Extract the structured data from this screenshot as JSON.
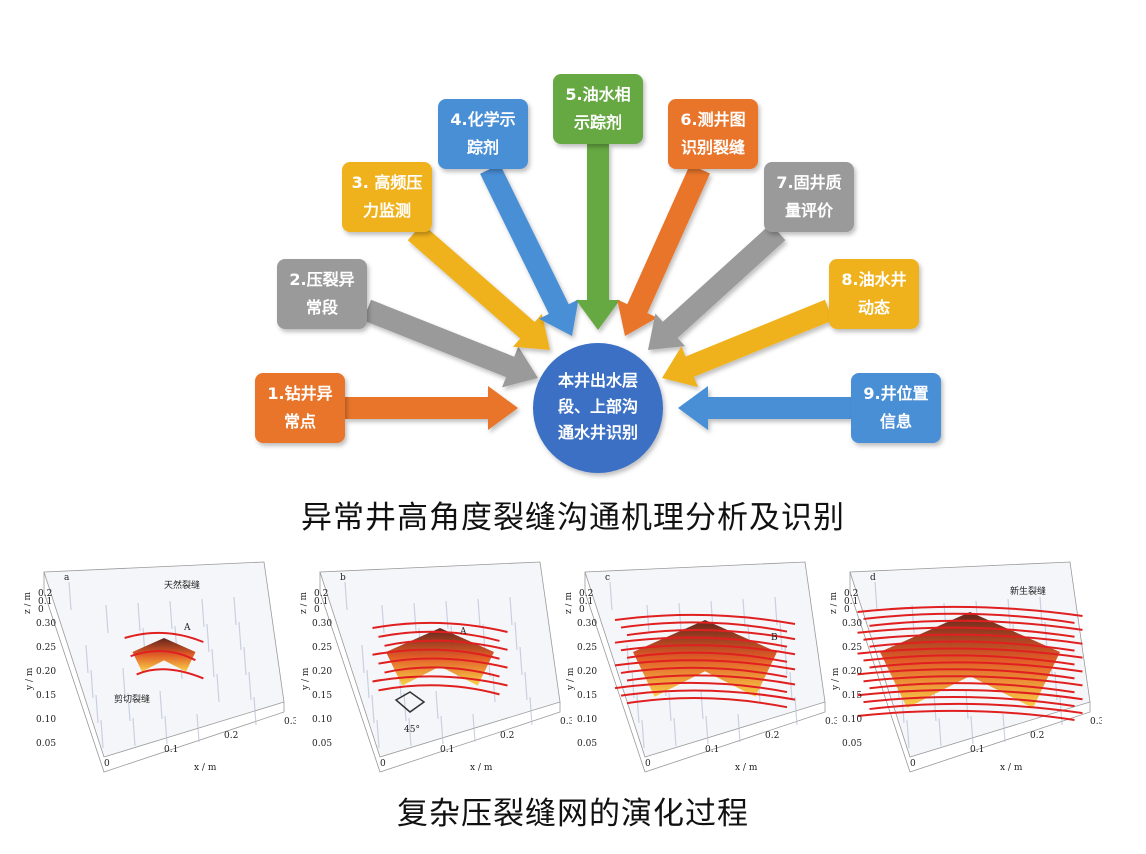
{
  "center": {
    "lines": [
      "本井出水层",
      "段、上部沟",
      "通水井识别"
    ],
    "color": "#3a6fc4"
  },
  "boxes": [
    {
      "id": "b1",
      "lines": [
        "1.钻井异",
        "常点"
      ],
      "color": "#e8742a"
    },
    {
      "id": "b2",
      "lines": [
        "2.压裂异",
        "常段"
      ],
      "color": "#9a9a9a"
    },
    {
      "id": "b3",
      "lines": [
        "3. 高频压",
        "力监测"
      ],
      "color": "#f0b21c"
    },
    {
      "id": "b4",
      "lines": [
        "4.化学示",
        "踪剂"
      ],
      "color": "#4a8fd6"
    },
    {
      "id": "b5",
      "lines": [
        "5.油水相",
        "示踪剂"
      ],
      "color": "#66a842"
    },
    {
      "id": "b6",
      "lines": [
        "6.测井图",
        "识别裂缝"
      ],
      "color": "#e8742a"
    },
    {
      "id": "b7",
      "lines": [
        "7.固井质",
        "量评价"
      ],
      "color": "#9a9a9a"
    },
    {
      "id": "b8",
      "lines": [
        "8.油水井",
        "动态"
      ],
      "color": "#f0b21c"
    },
    {
      "id": "b9",
      "lines": [
        "9.井位置",
        "信息"
      ],
      "color": "#4a8fd6"
    }
  ],
  "caption_top": "异常井高角度裂缝沟通机理分析及识别",
  "caption_bottom": "复杂压裂缝网的演化过程",
  "panels": [
    {
      "id": "a",
      "letter": "a",
      "annotations": [
        "天然裂缝",
        "A",
        "剪切裂缝"
      ]
    },
    {
      "id": "b",
      "letter": "b",
      "annotations": [
        "A",
        "45°"
      ]
    },
    {
      "id": "c",
      "letter": "c",
      "annotations": [
        "B"
      ]
    },
    {
      "id": "d",
      "letter": "d",
      "annotations": [
        "新生裂缝"
      ]
    }
  ],
  "axes": {
    "z_label": "z / m",
    "z_ticks": [
      "0.2",
      "0.1",
      "0"
    ],
    "y_label": "y / m",
    "y_ticks": [
      "0.30",
      "0.25",
      "0.20",
      "0.15",
      "0.10",
      "0.05"
    ],
    "x_label": "x / m",
    "x_ticks": [
      "0",
      "0.1",
      "0.2",
      "0.3"
    ]
  }
}
